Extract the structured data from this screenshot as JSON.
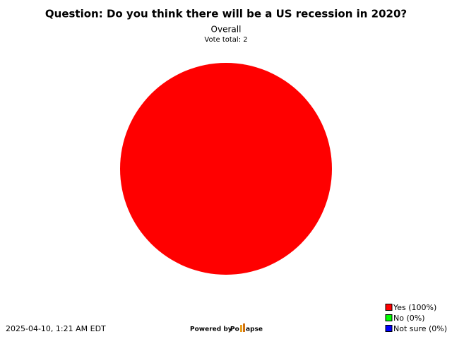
{
  "chart_data": {
    "type": "pie",
    "title": "Question: Do you think there will be a US recession in 2020?",
    "subtitle": "Overall",
    "note": "Vote total: 2",
    "categories": [
      "Yes (100%)",
      "No (0%)",
      "Not sure (0%)"
    ],
    "values": [
      100,
      0,
      0
    ],
    "colors": [
      "#ff0000",
      "#00ff00",
      "#0000ff"
    ],
    "legend": "bottom-right"
  },
  "footer": {
    "timestamp": "2025-04-10, 1:21 AM EDT",
    "powered_by": "Powered by",
    "brand_start": "Po",
    "brand_end": "apse"
  }
}
